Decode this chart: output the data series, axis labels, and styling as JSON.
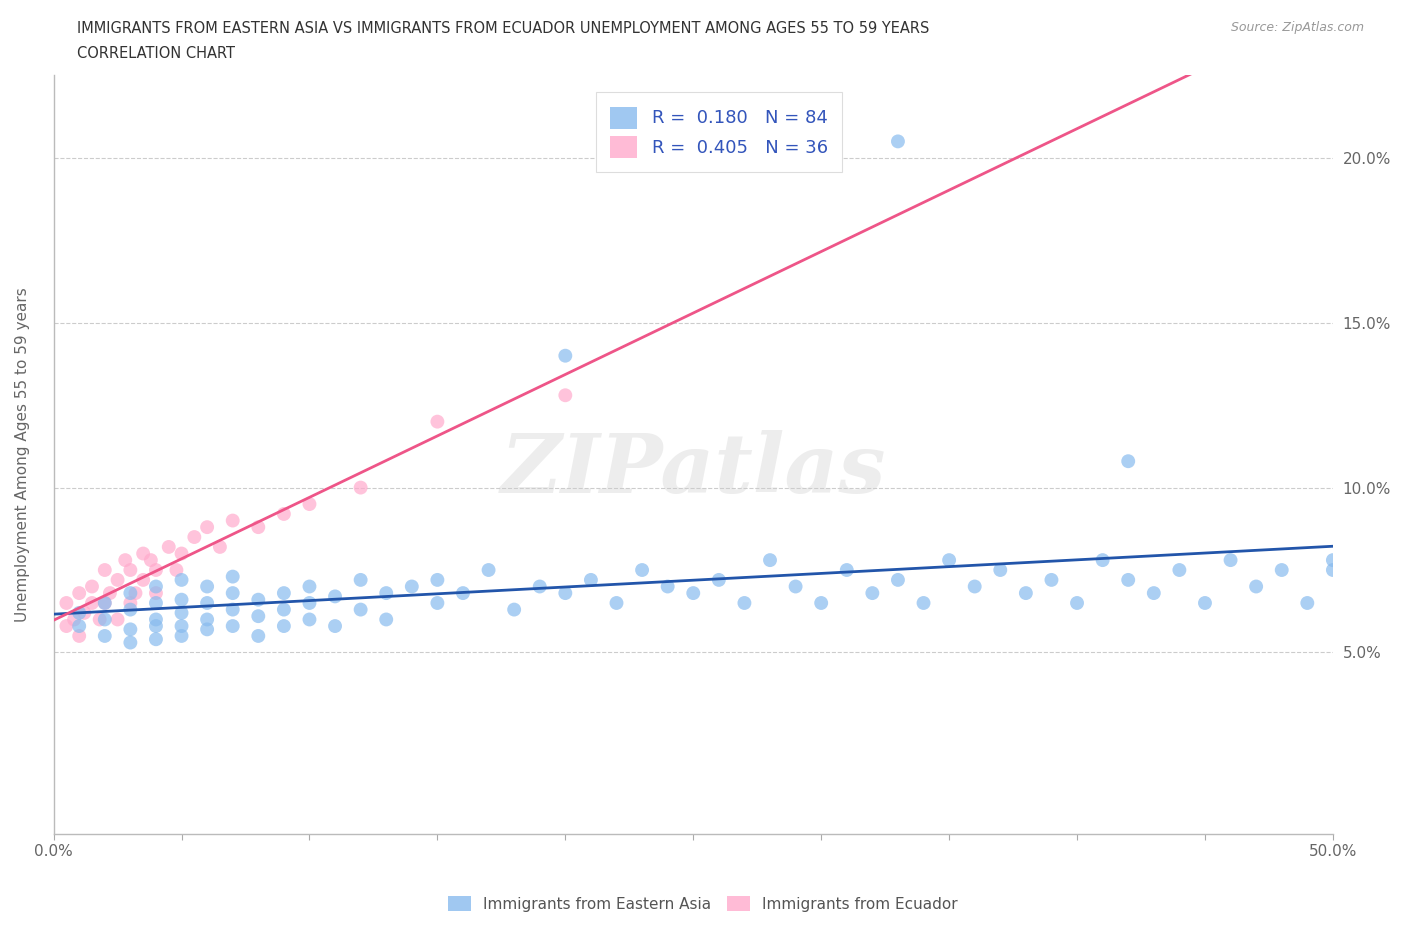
{
  "title_line1": "IMMIGRANTS FROM EASTERN ASIA VS IMMIGRANTS FROM ECUADOR UNEMPLOYMENT AMONG AGES 55 TO 59 YEARS",
  "title_line2": "CORRELATION CHART",
  "source_text": "Source: ZipAtlas.com",
  "ylabel": "Unemployment Among Ages 55 to 59 years",
  "xlim": [
    0.0,
    0.5
  ],
  "ylim": [
    -0.005,
    0.225
  ],
  "xtick_positions": [
    0.0,
    0.05,
    0.1,
    0.15,
    0.2,
    0.25,
    0.3,
    0.35,
    0.4,
    0.45,
    0.5
  ],
  "xticklabels": [
    "0.0%",
    "",
    "",
    "",
    "",
    "",
    "",
    "",
    "",
    "",
    "50.0%"
  ],
  "ytick_positions": [
    0.0,
    0.05,
    0.1,
    0.15,
    0.2
  ],
  "yticklabels": [
    "",
    "5.0%",
    "10.0%",
    "15.0%",
    "20.0%"
  ],
  "blue_color": "#88BBEE",
  "pink_color": "#FFAACC",
  "blue_line_color": "#2255AA",
  "pink_line_color": "#EE5588",
  "R_blue": 0.18,
  "N_blue": 84,
  "R_pink": 0.405,
  "N_pink": 36,
  "legend_label_blue": "Immigrants from Eastern Asia",
  "legend_label_pink": "Immigrants from Ecuador",
  "watermark": "ZIPatlas",
  "blue_scatter_x": [
    0.01,
    0.01,
    0.02,
    0.02,
    0.02,
    0.03,
    0.03,
    0.03,
    0.03,
    0.04,
    0.04,
    0.04,
    0.04,
    0.04,
    0.05,
    0.05,
    0.05,
    0.05,
    0.05,
    0.06,
    0.06,
    0.06,
    0.06,
    0.07,
    0.07,
    0.07,
    0.07,
    0.08,
    0.08,
    0.08,
    0.09,
    0.09,
    0.09,
    0.1,
    0.1,
    0.1,
    0.11,
    0.11,
    0.12,
    0.12,
    0.13,
    0.13,
    0.14,
    0.15,
    0.15,
    0.16,
    0.17,
    0.18,
    0.19,
    0.2,
    0.21,
    0.22,
    0.23,
    0.24,
    0.25,
    0.26,
    0.27,
    0.28,
    0.29,
    0.3,
    0.31,
    0.32,
    0.33,
    0.34,
    0.35,
    0.36,
    0.37,
    0.38,
    0.39,
    0.4,
    0.41,
    0.42,
    0.43,
    0.44,
    0.45,
    0.46,
    0.47,
    0.48,
    0.49,
    0.5,
    0.5,
    0.33,
    0.2,
    0.42
  ],
  "blue_scatter_y": [
    0.058,
    0.062,
    0.055,
    0.065,
    0.06,
    0.057,
    0.063,
    0.068,
    0.053,
    0.06,
    0.065,
    0.058,
    0.07,
    0.054,
    0.062,
    0.058,
    0.066,
    0.072,
    0.055,
    0.06,
    0.065,
    0.07,
    0.057,
    0.063,
    0.068,
    0.058,
    0.073,
    0.061,
    0.066,
    0.055,
    0.063,
    0.068,
    0.058,
    0.065,
    0.07,
    0.06,
    0.067,
    0.058,
    0.072,
    0.063,
    0.068,
    0.06,
    0.07,
    0.065,
    0.072,
    0.068,
    0.075,
    0.063,
    0.07,
    0.068,
    0.072,
    0.065,
    0.075,
    0.07,
    0.068,
    0.072,
    0.065,
    0.078,
    0.07,
    0.065,
    0.075,
    0.068,
    0.072,
    0.065,
    0.078,
    0.07,
    0.075,
    0.068,
    0.072,
    0.065,
    0.078,
    0.072,
    0.068,
    0.075,
    0.065,
    0.078,
    0.07,
    0.075,
    0.065,
    0.078,
    0.075,
    0.205,
    0.14,
    0.108
  ],
  "pink_scatter_x": [
    0.005,
    0.005,
    0.008,
    0.01,
    0.01,
    0.012,
    0.015,
    0.015,
    0.018,
    0.02,
    0.02,
    0.022,
    0.025,
    0.025,
    0.028,
    0.03,
    0.03,
    0.032,
    0.035,
    0.035,
    0.038,
    0.04,
    0.04,
    0.045,
    0.048,
    0.05,
    0.055,
    0.06,
    0.065,
    0.07,
    0.08,
    0.09,
    0.1,
    0.12,
    0.15,
    0.2
  ],
  "pink_scatter_y": [
    0.058,
    0.065,
    0.06,
    0.055,
    0.068,
    0.062,
    0.065,
    0.07,
    0.06,
    0.065,
    0.075,
    0.068,
    0.072,
    0.06,
    0.078,
    0.065,
    0.075,
    0.068,
    0.08,
    0.072,
    0.078,
    0.075,
    0.068,
    0.082,
    0.075,
    0.08,
    0.085,
    0.088,
    0.082,
    0.09,
    0.088,
    0.092,
    0.095,
    0.1,
    0.12,
    0.128
  ]
}
